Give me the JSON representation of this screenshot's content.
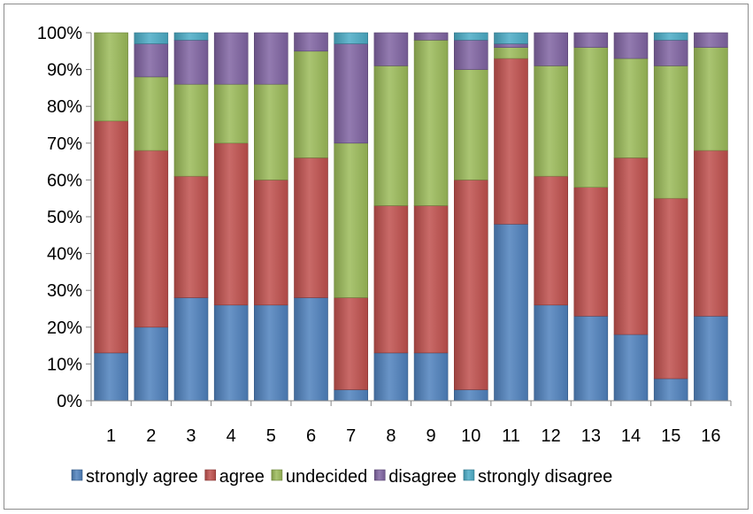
{
  "chart_data": {
    "type": "bar",
    "stacked": true,
    "normalized": true,
    "categories": [
      "1",
      "2",
      "3",
      "4",
      "5",
      "6",
      "7",
      "8",
      "9",
      "10",
      "11",
      "12",
      "13",
      "14",
      "15",
      "16"
    ],
    "yticks": [
      "0%",
      "10%",
      "20%",
      "30%",
      "40%",
      "50%",
      "60%",
      "70%",
      "80%",
      "90%",
      "100%"
    ],
    "ylim": [
      0,
      100
    ],
    "grid": false,
    "legend_position": "bottom",
    "series": [
      {
        "name": "strongly agree",
        "color": "#4F81BD",
        "values": [
          13,
          20,
          28,
          26,
          26,
          28,
          3,
          13,
          13,
          3,
          48,
          26,
          23,
          18,
          6,
          23
        ]
      },
      {
        "name": "agree",
        "color": "#C0504D",
        "values": [
          63,
          48,
          33,
          44,
          34,
          38,
          25,
          40,
          40,
          57,
          45,
          35,
          35,
          48,
          49,
          45
        ]
      },
      {
        "name": "undecided",
        "color": "#9BBB59",
        "values": [
          24,
          20,
          25,
          16,
          26,
          29,
          42,
          38,
          45,
          30,
          3,
          30,
          38,
          27,
          36,
          28
        ]
      },
      {
        "name": "disagree",
        "color": "#8064A2",
        "values": [
          0,
          9,
          12,
          14,
          14,
          5,
          27,
          9,
          2,
          8,
          1,
          9,
          4,
          7,
          7,
          4
        ]
      },
      {
        "name": "strongly disagree",
        "color": "#4BACC6",
        "values": [
          0,
          3,
          2,
          0,
          0,
          0,
          3,
          0,
          0,
          2,
          3,
          0,
          0,
          0,
          2,
          0
        ]
      }
    ]
  }
}
